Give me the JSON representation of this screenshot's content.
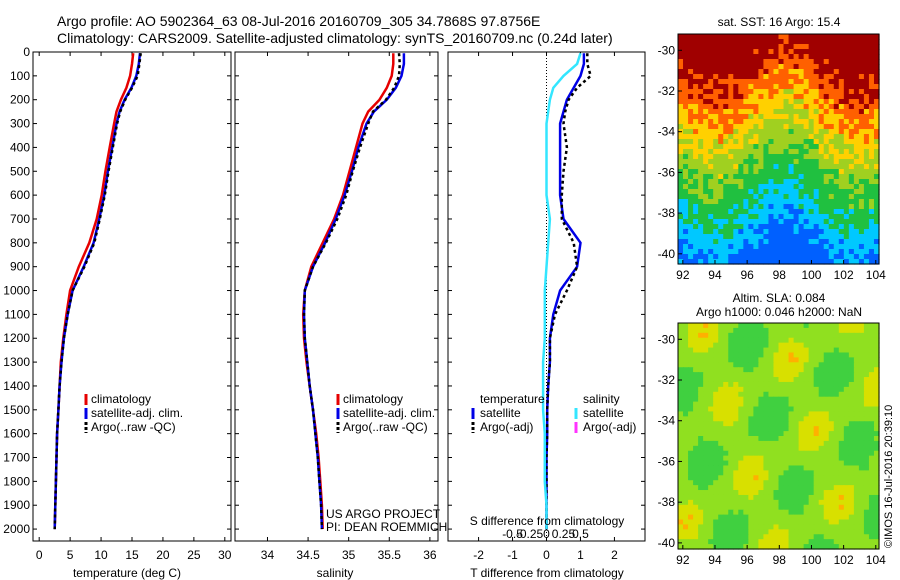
{
  "header": {
    "line1": "Argo profile: AO 5902364_63 08-Jul-2016 20160709_305 34.7868S 97.8756E",
    "line2": "Climatology: CARS2009. Satellite-adjusted climatology: synTS_20160709.nc (0.24d later)"
  },
  "colors": {
    "climatology": "#e60000",
    "satellite": "#0000e6",
    "argo": "#000000",
    "sat_salinity": "#33e6ff",
    "argo_salinity": "#ff33ff"
  },
  "chart_data": [
    {
      "type": "line",
      "xlabel": "temperature (deg C)",
      "ylim": [
        2050,
        0
      ],
      "xlim": [
        -1,
        31
      ],
      "xticks": [
        0,
        5,
        10,
        15,
        20,
        25,
        30
      ],
      "yticks": [
        0,
        100,
        200,
        300,
        400,
        500,
        600,
        700,
        800,
        900,
        1000,
        1100,
        1200,
        1300,
        1400,
        1500,
        1600,
        1700,
        1800,
        1900,
        2000
      ],
      "legend": [
        "climatology",
        "satellite-adj. clim.",
        "Argo(..raw -QC)"
      ],
      "legend_location": "lower-right",
      "depth": [
        5,
        50,
        100,
        150,
        200,
        250,
        300,
        400,
        500,
        600,
        700,
        800,
        900,
        1000,
        1100,
        1200,
        1300,
        1400,
        1500,
        1600,
        1700,
        1800,
        1900,
        2000
      ],
      "series": [
        {
          "name": "climatology",
          "values": [
            15.2,
            15.0,
            14.7,
            14.1,
            13.2,
            12.5,
            12.1,
            11.4,
            10.7,
            10.1,
            9.3,
            8.1,
            6.4,
            5.0,
            4.4,
            3.9,
            3.5,
            3.3,
            3.1,
            2.9,
            2.8,
            2.7,
            2.6,
            2.5
          ]
        },
        {
          "name": "satellite-adj. clim.",
          "values": [
            16.3,
            16.1,
            15.7,
            14.9,
            13.8,
            13.0,
            12.5,
            11.8,
            11.1,
            10.5,
            9.7,
            8.8,
            7.2,
            5.4,
            4.6,
            4.0,
            3.6,
            3.3,
            3.1,
            2.9,
            2.8,
            2.7,
            2.6,
            2.5
          ]
        },
        {
          "name": "Argo(..raw -QC)",
          "values": [
            16.4,
            16.2,
            15.9,
            15.0,
            13.9,
            13.1,
            12.6,
            11.9,
            11.2,
            10.6,
            9.8,
            8.9,
            7.3,
            5.4,
            4.6,
            4.0,
            3.6,
            3.3,
            3.1,
            2.9,
            2.8,
            2.7,
            2.6,
            2.5
          ]
        }
      ]
    },
    {
      "type": "line",
      "xlabel": "salinity",
      "ylim": [
        2050,
        0
      ],
      "xlim": [
        33.6,
        36.1
      ],
      "xticks": [
        34,
        34.5,
        35,
        35.5,
        36
      ],
      "legend": [
        "climatology",
        "satellite-adj. clim.",
        "Argo(..raw -QC)"
      ],
      "legend_location": "lower-right",
      "depth": [
        5,
        50,
        100,
        150,
        200,
        250,
        300,
        400,
        500,
        600,
        700,
        800,
        900,
        1000,
        1100,
        1200,
        1300,
        1400,
        1500,
        1600,
        1700,
        1800,
        1900,
        2000
      ],
      "series": [
        {
          "name": "climatology",
          "values": [
            35.55,
            35.55,
            35.53,
            35.47,
            35.38,
            35.24,
            35.17,
            35.09,
            35.01,
            34.93,
            34.82,
            34.68,
            34.54,
            34.46,
            34.44,
            34.45,
            34.48,
            34.52,
            34.56,
            34.6,
            34.63,
            34.65,
            34.67,
            34.68
          ]
        },
        {
          "name": "satellite-adj. clim.",
          "values": [
            35.68,
            35.68,
            35.65,
            35.58,
            35.47,
            35.31,
            35.22,
            35.12,
            35.04,
            34.95,
            34.84,
            34.71,
            34.56,
            34.46,
            34.45,
            34.46,
            34.49,
            34.52,
            34.56,
            34.59,
            34.62,
            34.64,
            34.66,
            34.67
          ]
        },
        {
          "name": "Argo(..raw -QC)",
          "values": [
            35.62,
            35.63,
            35.62,
            35.56,
            35.46,
            35.3,
            35.24,
            35.14,
            35.05,
            34.97,
            34.86,
            34.72,
            34.56,
            34.46,
            34.45,
            34.46,
            34.49,
            34.52,
            34.56,
            34.59,
            34.62,
            34.64,
            34.66,
            34.67
          ]
        }
      ]
    },
    {
      "type": "line",
      "xlabel": "T difference from climatology",
      "xlabel2": "S difference from climatology",
      "ylim": [
        2050,
        0
      ],
      "xlim": [
        -2.9,
        2.9
      ],
      "xticks": [
        -2,
        -1,
        0,
        1,
        2
      ],
      "xticks2": [
        "-0.5",
        "-0.25",
        "0",
        "0.25",
        "0.5"
      ],
      "legend_titles": [
        "temperature",
        "salinity"
      ],
      "legend_temperature": [
        "satellite",
        "Argo(-adj)"
      ],
      "legend_salinity": [
        "satellite",
        "Argo(-adj)"
      ],
      "legend_location": "lower-middle",
      "depth": [
        5,
        50,
        100,
        150,
        200,
        250,
        300,
        400,
        500,
        600,
        700,
        800,
        900,
        1000,
        1100,
        1200,
        1300,
        1400,
        1500,
        1600,
        1700,
        1800,
        1900,
        2000
      ],
      "series": [
        {
          "name": "temperature satellite",
          "values": [
            1.1,
            1.1,
            1.0,
            0.8,
            0.6,
            0.5,
            0.4,
            0.4,
            0.4,
            0.4,
            0.5,
            1.0,
            0.9,
            0.4,
            0.2,
            0.1,
            0.1,
            0.05,
            0.02,
            0.02,
            0.0,
            0.0,
            0.0,
            0.0
          ]
        },
        {
          "name": "temperature Argo(-adj)",
          "values": [
            1.2,
            1.2,
            1.3,
            0.9,
            0.65,
            0.55,
            0.5,
            0.6,
            0.5,
            0.45,
            0.45,
            0.8,
            0.9,
            0.6,
            0.25,
            0.1,
            0.1,
            0.05,
            0.02,
            0.02,
            0.0,
            0.0,
            0.0,
            0.0
          ]
        },
        {
          "name": "salinity satellite",
          "values": [
            1.0,
            0.9,
            0.5,
            0.2,
            0.1,
            0.05,
            0.0,
            0.0,
            0.0,
            0.0,
            0.1,
            0.05,
            0.0,
            -0.05,
            -0.05,
            -0.05,
            -0.1,
            -0.1,
            -0.1,
            -0.05,
            -0.05,
            -0.05,
            0.0,
            0.0
          ]
        }
      ]
    },
    {
      "type": "heatmap",
      "title": "sat. SST: 16 Argo: 15.4",
      "xticks": [
        92,
        94,
        96,
        98,
        100,
        102,
        104
      ],
      "yticks": [
        -30,
        -32,
        -34,
        -36,
        -38,
        -40
      ],
      "xlim": [
        91.7,
        104.2
      ],
      "ylim": [
        -40.5,
        -29.2
      ]
    },
    {
      "type": "heatmap",
      "title": "Altim. SLA: 0.084",
      "subtitle": "Argo h1000: 0.046 h2000: NaN",
      "xticks": [
        92,
        94,
        96,
        98,
        100,
        102,
        104
      ],
      "yticks": [
        -30,
        -32,
        -34,
        -36,
        -38,
        -40
      ],
      "xlim": [
        91.7,
        104.2
      ],
      "ylim": [
        -40.3,
        -29.2
      ]
    }
  ],
  "credits": {
    "project": "US ARGO PROJECT",
    "pi": "PI: DEAN ROEMMICH",
    "imos_stamp": "©IMOS 16-Jul-2016 20:39:10"
  }
}
